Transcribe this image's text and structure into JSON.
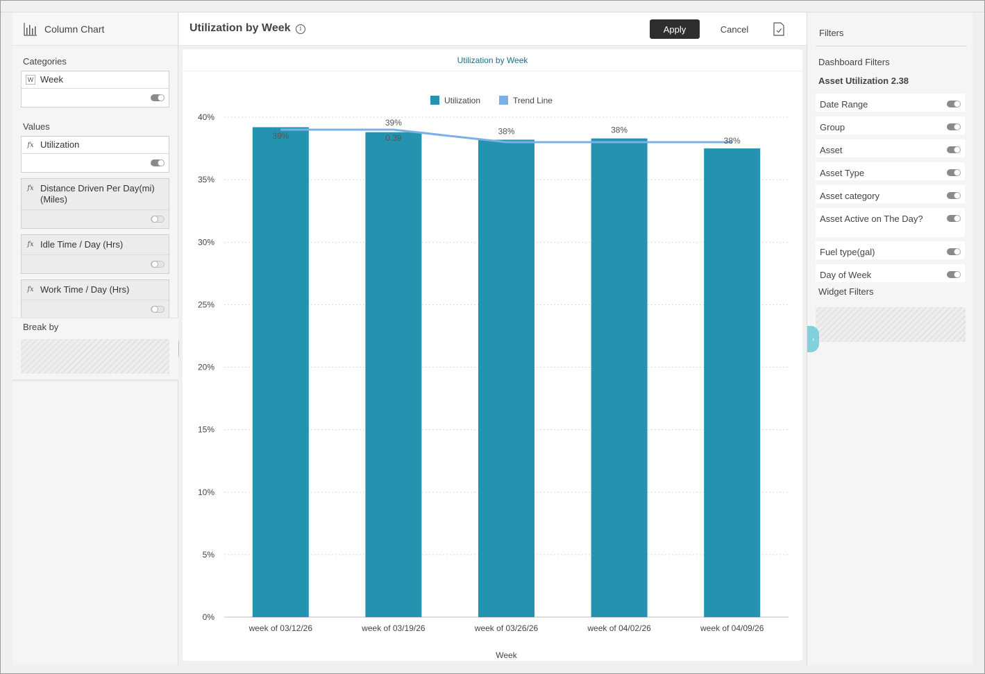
{
  "left_panel": {
    "title": "Column Chart",
    "categories_label": "Categories",
    "categories": [
      {
        "badge": "W",
        "label": "Week"
      }
    ],
    "values_label": "Values",
    "values": [
      {
        "badge": "fx",
        "label": "Utilization",
        "active": true
      },
      {
        "badge": "fx",
        "label": "Distance Driven Per Day(mi) (Miles)",
        "active": false
      },
      {
        "badge": "fx",
        "label": "Idle Time / Day (Hrs)",
        "active": false
      },
      {
        "badge": "fx",
        "label": "Work Time / Day (Hrs)",
        "active": false
      }
    ],
    "break_by_label": "Break by"
  },
  "header": {
    "title": "Utilization by Week",
    "apply_label": "Apply",
    "cancel_label": "Cancel"
  },
  "right_panel": {
    "title": "Filters",
    "dashboard_filters_label": "Dashboard Filters",
    "dashboard_name": "Asset Utilization 2.38",
    "filters": [
      "Date Range",
      "Group",
      "Asset",
      "Asset Type",
      "Asset category",
      "Asset Active on The Day?",
      "Fuel type(gal)",
      "Day of Week"
    ],
    "widget_filters_label": "Widget Filters"
  },
  "colors": {
    "bar": "#2393b0",
    "trend": "#79b0e6"
  },
  "chart_data": {
    "type": "bar",
    "title": "Utilization by Week",
    "xlabel": "Week",
    "ylabel": "",
    "ylim": [
      0,
      40
    ],
    "ytick_labels": [
      "0%",
      "5%",
      "10%",
      "15%",
      "20%",
      "25%",
      "30%",
      "35%",
      "40%"
    ],
    "yticks": [
      0,
      5,
      10,
      15,
      20,
      25,
      30,
      35,
      40
    ],
    "grid": true,
    "legend_position": "top",
    "categories": [
      "week of 03/12/26",
      "week of 03/19/26",
      "week of 03/26/26",
      "week of 04/02/26",
      "week of 04/09/26"
    ],
    "series": [
      {
        "name": "Utilization",
        "type": "bar",
        "values": [
          39.2,
          38.8,
          38.2,
          38.3,
          37.5
        ],
        "labels": [
          "39%",
          "39%",
          "38%",
          "38%",
          "38%"
        ]
      },
      {
        "name": "Trend Line",
        "type": "line",
        "values": [
          39.0,
          39.0,
          38.0,
          38.0,
          38.0
        ],
        "labels": [
          "",
          "0.39",
          "",
          "",
          ""
        ]
      }
    ]
  }
}
